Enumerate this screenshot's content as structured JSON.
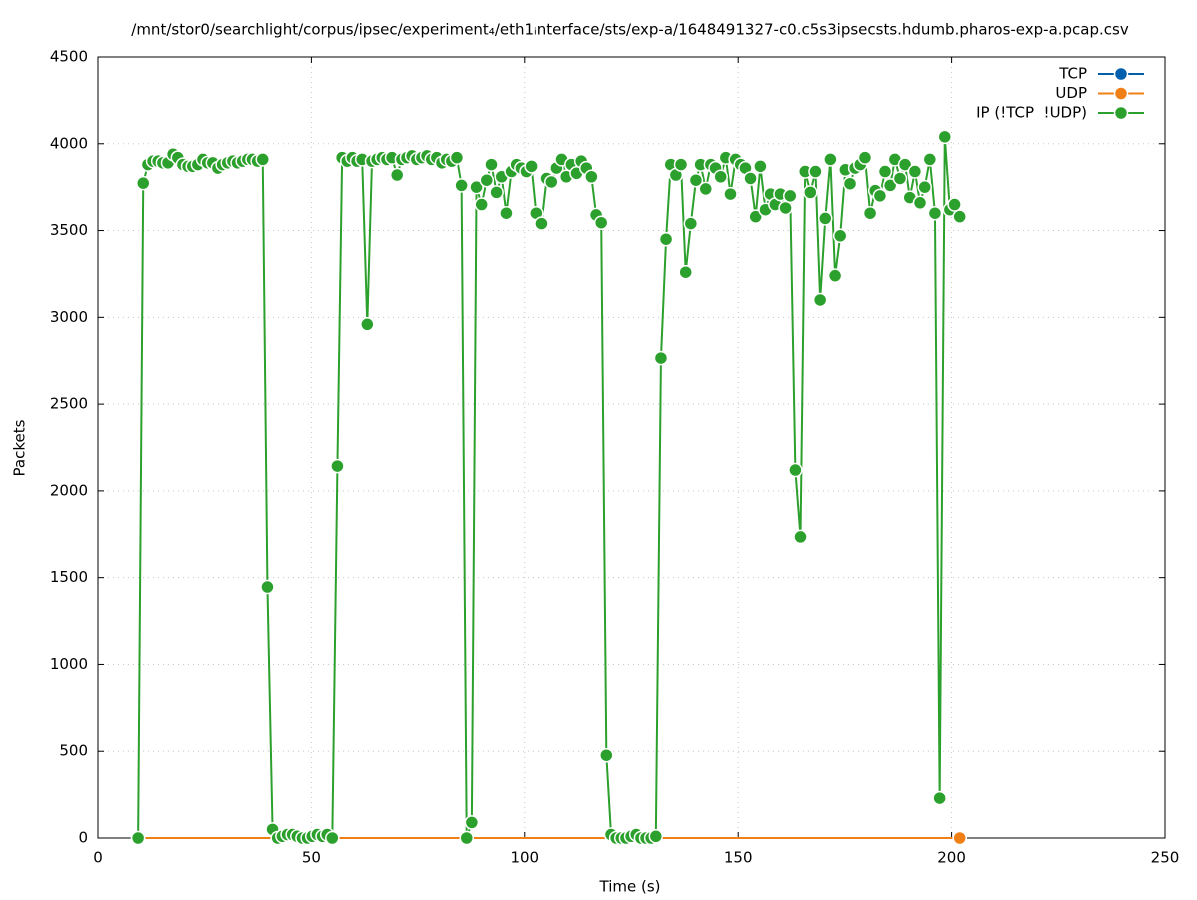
{
  "chart_data": {
    "type": "line",
    "title": "/mnt/stor0/searchlight/corpus/ipsec/experiment₄/eth1ᵢnterface/sts/exp-a/1648491327-c0.c5s3ipsecsts.hdumb.pharos-exp-a.pcap.csv",
    "x_label": "Time (s)",
    "y_label": "Packets",
    "xlim": [
      0,
      250
    ],
    "xticks": [
      0,
      50,
      100,
      150,
      200,
      250
    ],
    "ylim": [
      0,
      4500
    ],
    "yticks": [
      0,
      500,
      1000,
      1500,
      2000,
      2500,
      3000,
      3500,
      4000,
      4500
    ],
    "grid": true,
    "legend": "top-right",
    "x": [
      9.4,
      10.6,
      11.7,
      12.9,
      14.1,
      15.2,
      16.4,
      17.6,
      18.7,
      19.9,
      21.1,
      22.2,
      23.4,
      24.6,
      25.7,
      26.9,
      28.1,
      29.2,
      30.4,
      31.6,
      32.7,
      33.9,
      35.1,
      36.2,
      37.4,
      38.6,
      39.7,
      40.9,
      42.1,
      43.2,
      44.4,
      45.6,
      46.7,
      47.9,
      49.1,
      50.2,
      51.4,
      52.6,
      53.7,
      54.9,
      56.1,
      57.2,
      58.4,
      59.6,
      60.7,
      61.9,
      63.1,
      64.2,
      65.4,
      66.6,
      67.7,
      68.9,
      70.1,
      71.2,
      72.4,
      73.6,
      74.7,
      75.9,
      77.1,
      78.2,
      79.4,
      80.6,
      81.7,
      82.9,
      84.1,
      85.2,
      86.4,
      87.6,
      88.7,
      89.9,
      91.1,
      92.2,
      93.4,
      94.6,
      95.7,
      96.9,
      98.1,
      99.2,
      100.4,
      101.6,
      102.7,
      103.9,
      105.1,
      106.2,
      107.4,
      108.6,
      109.7,
      110.9,
      112.1,
      113.2,
      114.4,
      115.6,
      116.7,
      117.9,
      119.1,
      120.2,
      121.4,
      122.6,
      123.7,
      124.9,
      126.1,
      127.2,
      128.4,
      129.6,
      130.7,
      131.9,
      133.1,
      134.2,
      135.4,
      136.6,
      137.7,
      138.9,
      140.1,
      141.2,
      142.4,
      143.6,
      144.7,
      145.9,
      147.1,
      148.2,
      149.4,
      150.6,
      151.7,
      152.9,
      154.1,
      155.2,
      156.4,
      157.6,
      158.7,
      159.9,
      161.1,
      162.2,
      163.4,
      164.6,
      165.7,
      166.9,
      168.1,
      169.2,
      170.4,
      171.6,
      172.7,
      173.9,
      175.1,
      176.2,
      177.4,
      178.6,
      179.7,
      180.9,
      182.1,
      183.2,
      184.4,
      185.6,
      186.7,
      187.9,
      189.1,
      190.2,
      191.4,
      192.6,
      193.7,
      194.9,
      196.1,
      197.2,
      198.4,
      199.6,
      200.7,
      201.9
    ],
    "series": [
      {
        "name": "TCP",
        "color": "#0060ad",
        "x": [
          9.4,
          201.9
        ],
        "values": [
          0,
          0
        ]
      },
      {
        "name": "UDP",
        "color": "#f07f16",
        "x": [
          9.4,
          201.9
        ],
        "values": [
          0,
          0
        ]
      },
      {
        "name": "IP (!TCP  !UDP)",
        "color": "#2ca02c",
        "values": [
          0,
          3773,
          3880,
          3900,
          3900,
          3890,
          3890,
          3940,
          3920,
          3880,
          3870,
          3870,
          3880,
          3910,
          3890,
          3890,
          3860,
          3880,
          3890,
          3900,
          3890,
          3900,
          3910,
          3910,
          3900,
          3910,
          1446,
          50,
          0,
          10,
          20,
          20,
          10,
          0,
          0,
          10,
          20,
          10,
          20,
          0,
          2143,
          3920,
          3900,
          3920,
          3900,
          3910,
          2960,
          3900,
          3910,
          3920,
          3910,
          3920,
          3820,
          3910,
          3920,
          3930,
          3910,
          3920,
          3930,
          3910,
          3920,
          3890,
          3910,
          3900,
          3920,
          3760,
          0,
          90,
          3750,
          3650,
          3790,
          3880,
          3720,
          3810,
          3600,
          3840,
          3880,
          3860,
          3840,
          3870,
          3600,
          3540,
          3800,
          3780,
          3860,
          3910,
          3810,
          3880,
          3830,
          3900,
          3860,
          3810,
          3590,
          3545,
          477,
          20,
          0,
          0,
          0,
          10,
          20,
          0,
          0,
          0,
          10,
          2765,
          3450,
          3880,
          3820,
          3880,
          3260,
          3540,
          3790,
          3880,
          3740,
          3880,
          3860,
          3810,
          3920,
          3710,
          3910,
          3880,
          3860,
          3800,
          3580,
          3870,
          3620,
          3710,
          3650,
          3710,
          3630,
          3700,
          2120,
          1735,
          3840,
          3720,
          3840,
          3100,
          3570,
          3910,
          3240,
          3470,
          3850,
          3770,
          3860,
          3880,
          3920,
          3600,
          3730,
          3700,
          3840,
          3760,
          3910,
          3800,
          3880,
          3690,
          3840,
          3660,
          3750,
          3910,
          3600,
          230,
          4040,
          3620,
          3650,
          3580
        ]
      }
    ]
  }
}
